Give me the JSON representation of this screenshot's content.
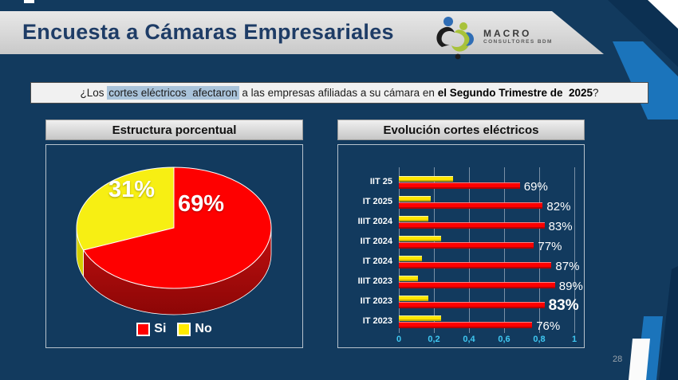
{
  "slide": {
    "title": "Encuesta a Cámaras Empresariales",
    "page_number": "28"
  },
  "logo": {
    "name": "MACRO",
    "subtitle": "CONSULTORES BDM"
  },
  "question": {
    "prefix": "¿Los ",
    "highlighted": "cortes eléctricos  afectaron",
    "middle": " a las empresas afiliadas a su cámara en ",
    "bold": "el Segundo Trimestre de  2025",
    "suffix": "?"
  },
  "pie_panel": {
    "title": "Estructura porcentual"
  },
  "bar_panel": {
    "title": "Evolución cortes eléctricos"
  },
  "chart_data": [
    {
      "type": "pie",
      "title": "Estructura porcentual",
      "style": "3d",
      "labels": [
        "Si",
        "No"
      ],
      "values": [
        69,
        31
      ],
      "data_labels": [
        "69%",
        "31%"
      ],
      "colors": [
        "#ff0000",
        "#ffeb00"
      ],
      "legend_position": "bottom"
    },
    {
      "type": "bar",
      "title": "Evolución cortes eléctricos",
      "orientation": "horizontal",
      "categories": [
        "IIT 25",
        "IT 2025",
        "IIIT 2024",
        "IIT 2024",
        "IT 2024",
        "IIIT 2023",
        "IIT 2023",
        "IT 2023"
      ],
      "series": [
        {
          "name": "No",
          "color": "#ffe600",
          "values": [
            0.31,
            0.18,
            0.17,
            0.24,
            0.13,
            0.11,
            0.17,
            0.24
          ]
        },
        {
          "name": "Si",
          "color": "#ff0000",
          "values": [
            0.69,
            0.82,
            0.83,
            0.77,
            0.87,
            0.89,
            0.83,
            0.76
          ],
          "labels": [
            "69%",
            "82%",
            "83%",
            "77%",
            "87%",
            "89%",
            "83%",
            "76%"
          ]
        }
      ],
      "emphasized_label_index": 6,
      "xlim": [
        0,
        1
      ],
      "x_ticks": [
        "0",
        "0,2",
        "0,4",
        "0,6",
        "0,8",
        "1"
      ],
      "grid": true
    }
  ],
  "colors": {
    "background": "#123a5e",
    "accent_blue": "#1b74bb",
    "dark_band": "#0c3052",
    "header_band": "#d9d9d9",
    "red": "#ff0000",
    "yellow": "#ffe600",
    "axis_labels": "#3fc8f2"
  }
}
